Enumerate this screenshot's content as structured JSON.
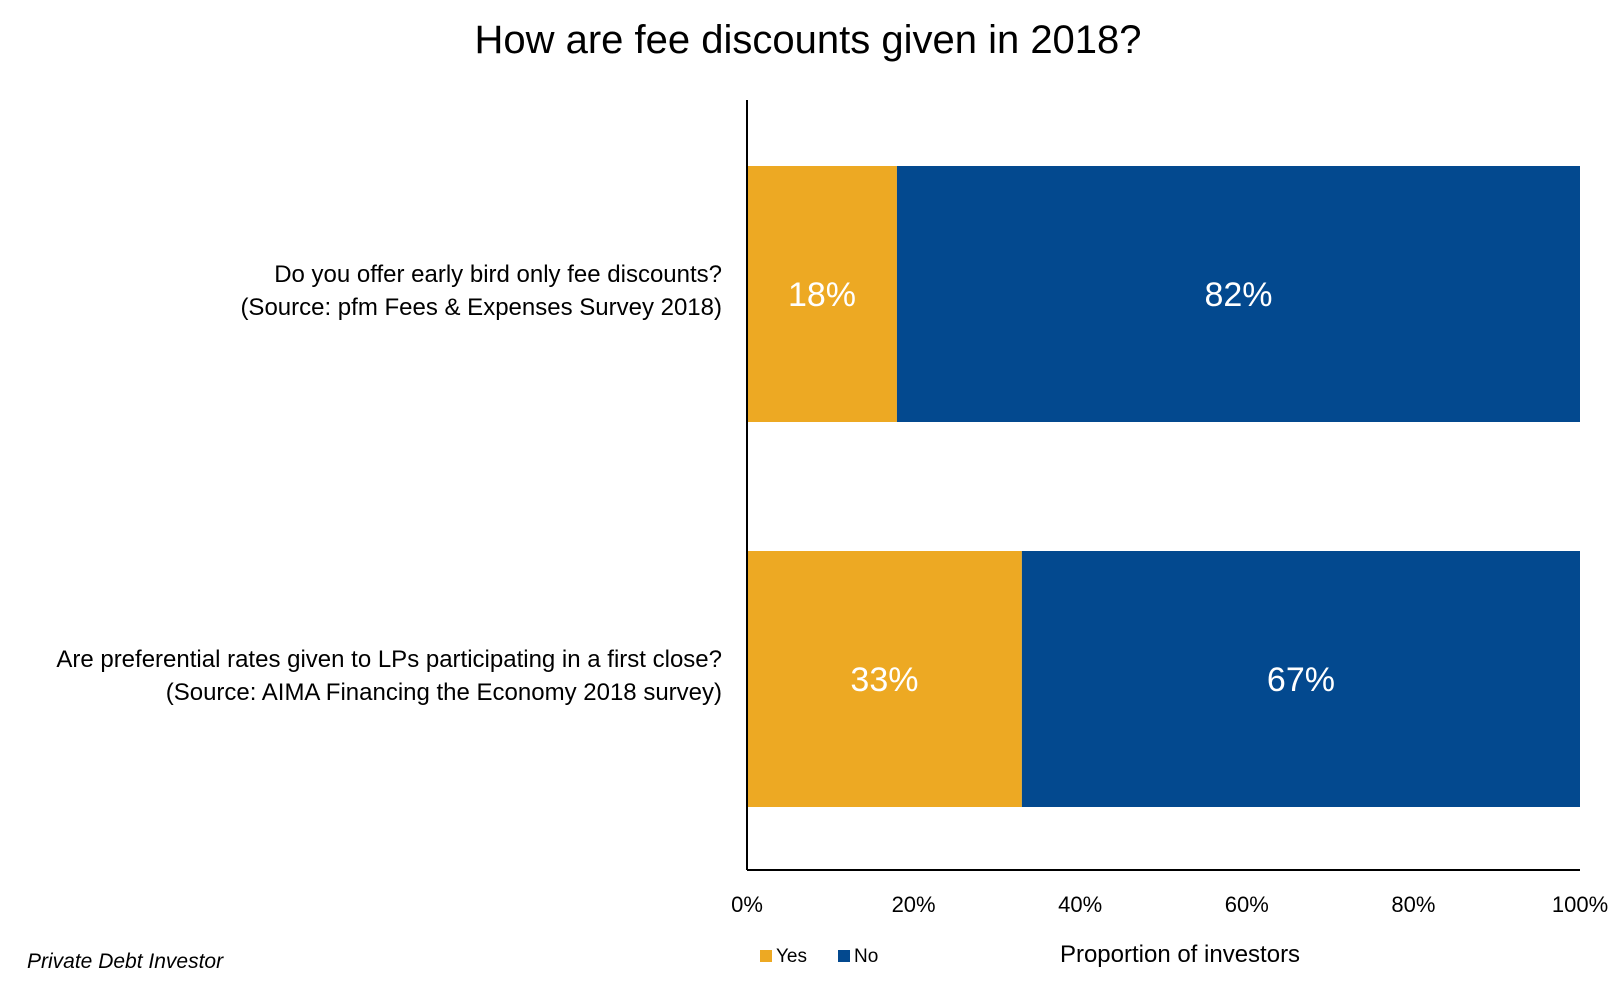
{
  "chart_data": {
    "type": "bar",
    "orientation": "horizontal",
    "stacked": true,
    "title": "How are fee discounts given in 2018?",
    "xlabel": "Proportion of investors",
    "ylabel": "",
    "xlim": [
      0,
      100
    ],
    "x_ticks": [
      "0%",
      "20%",
      "40%",
      "60%",
      "80%",
      "100%"
    ],
    "categories": [
      {
        "line1": "Do you offer early bird only fee discounts?",
        "line2": "(Source: pfm Fees & Expenses Survey 2018)"
      },
      {
        "line1": "Are preferential rates given to LPs participating in a first close?",
        "line2": "(Source: AIMA Financing the Economy 2018 survey)"
      }
    ],
    "series": [
      {
        "name": "Yes",
        "color": "#EDA923",
        "values": [
          18,
          33
        ],
        "labels": [
          "18%",
          "33%"
        ]
      },
      {
        "name": "No",
        "color": "#03498F",
        "values": [
          82,
          67
        ],
        "labels": [
          "82%",
          "67%"
        ]
      }
    ],
    "legend_position": "bottom",
    "grid": false
  },
  "footer": {
    "credit": "Private Debt Investor"
  }
}
